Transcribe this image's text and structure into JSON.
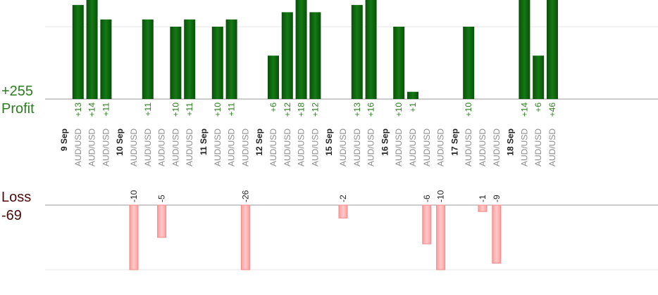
{
  "summary": {
    "profit_total": "+255",
    "profit_label": "Profit",
    "loss_label": "Loss",
    "loss_total": "-69"
  },
  "chart_data": {
    "type": "bar",
    "title": "",
    "xlabel": "",
    "ylabel": "",
    "profit_ylim": [
      0,
      14
    ],
    "loss_ylim": [
      0,
      10
    ],
    "colors": {
      "profit": "#0f6a0f",
      "loss": "#ffb3b3",
      "profit_text": "#2a7d1e",
      "loss_text": "#222222",
      "pair_text": "#8c8c8c",
      "date_text": "#222222"
    },
    "slots": [
      {
        "kind": "date",
        "label": "9 Sep"
      },
      {
        "kind": "trade",
        "pair": "AUD/USD",
        "value": 13
      },
      {
        "kind": "trade",
        "pair": "AUD/USD",
        "value": 14
      },
      {
        "kind": "trade",
        "pair": "AUD/USD",
        "value": 11
      },
      {
        "kind": "date",
        "label": "10 Sep"
      },
      {
        "kind": "trade",
        "pair": "AUD/USD",
        "value": -10
      },
      {
        "kind": "trade",
        "pair": "AUD/USD",
        "value": 11
      },
      {
        "kind": "trade",
        "pair": "AUD/USD",
        "value": -5
      },
      {
        "kind": "trade",
        "pair": "AUD/USD",
        "value": 10
      },
      {
        "kind": "trade",
        "pair": "AUD/USD",
        "value": 11
      },
      {
        "kind": "date",
        "label": "11 Sep"
      },
      {
        "kind": "trade",
        "pair": "AUD/USD",
        "value": 10
      },
      {
        "kind": "trade",
        "pair": "AUD/USD",
        "value": 11
      },
      {
        "kind": "trade",
        "pair": "AUD/USD",
        "value": -26
      },
      {
        "kind": "date",
        "label": "12 Sep"
      },
      {
        "kind": "trade",
        "pair": "AUD/USD",
        "value": 6
      },
      {
        "kind": "trade",
        "pair": "AUD/USD",
        "value": 12
      },
      {
        "kind": "trade",
        "pair": "AUD/USD",
        "value": 18
      },
      {
        "kind": "trade",
        "pair": "AUD/USD",
        "value": 12
      },
      {
        "kind": "date",
        "label": "15 Sep"
      },
      {
        "kind": "trade",
        "pair": "AUD/USD",
        "value": -2
      },
      {
        "kind": "trade",
        "pair": "AUD/USD",
        "value": 13
      },
      {
        "kind": "trade",
        "pair": "AUD/USD",
        "value": 16
      },
      {
        "kind": "date",
        "label": "16 Sep"
      },
      {
        "kind": "trade",
        "pair": "AUD/USD",
        "value": 10
      },
      {
        "kind": "trade",
        "pair": "AUD/USD",
        "value": 1
      },
      {
        "kind": "trade",
        "pair": "AUD/USD",
        "value": -6
      },
      {
        "kind": "trade",
        "pair": "AUD/USD",
        "value": -10
      },
      {
        "kind": "date",
        "label": "17 Sep"
      },
      {
        "kind": "trade",
        "pair": "AUD/USD",
        "value": 10
      },
      {
        "kind": "trade",
        "pair": "AUD/USD",
        "value": -1
      },
      {
        "kind": "trade",
        "pair": "AUD/USD",
        "value": -9
      },
      {
        "kind": "date",
        "label": "18 Sep"
      },
      {
        "kind": "trade",
        "pair": "AUD/USD",
        "value": 14
      },
      {
        "kind": "trade",
        "pair": "AUD/USD",
        "value": 6
      },
      {
        "kind": "trade",
        "pair": "AUD/USD",
        "value": 46
      }
    ]
  }
}
